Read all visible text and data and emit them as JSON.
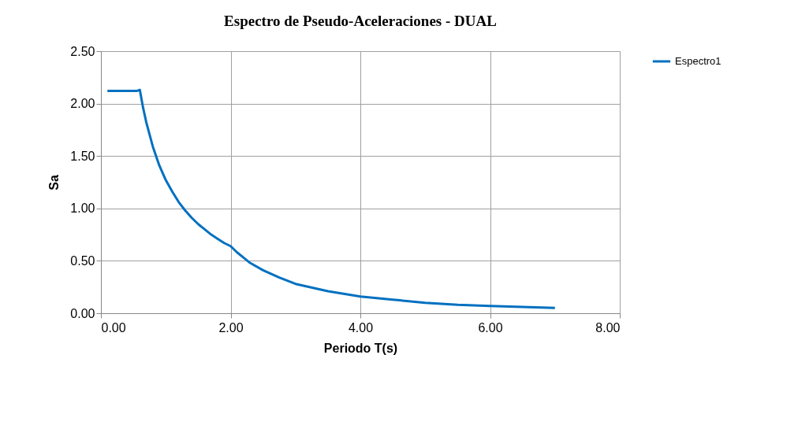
{
  "chart_data": {
    "type": "line",
    "title": "Espectro de Pseudo-Aceleraciones - DUAL",
    "xlabel": "Periodo T(s)",
    "ylabel": "Sa",
    "x": [
      0.1,
      0.2,
      0.3,
      0.4,
      0.5,
      0.55,
      0.6,
      0.65,
      0.7,
      0.8,
      0.9,
      1.0,
      1.1,
      1.2,
      1.3,
      1.4,
      1.5,
      1.6,
      1.7,
      1.8,
      1.9,
      2.0,
      2.1,
      2.2,
      2.3,
      2.5,
      2.75,
      3.0,
      3.5,
      4.0,
      4.5,
      5.0,
      5.5,
      6.0,
      6.5,
      7.0
    ],
    "series": [
      {
        "name": "Espectro1",
        "color": "#0070c0",
        "values": [
          2.12,
          2.12,
          2.12,
          2.12,
          2.12,
          2.12,
          2.13,
          1.96,
          1.82,
          1.59,
          1.41,
          1.27,
          1.16,
          1.06,
          0.98,
          0.91,
          0.85,
          0.8,
          0.75,
          0.71,
          0.67,
          0.64,
          0.58,
          0.53,
          0.48,
          0.41,
          0.34,
          0.28,
          0.21,
          0.16,
          0.13,
          0.1,
          0.08,
          0.07,
          0.06,
          0.05
        ]
      }
    ],
    "xlim": [
      0,
      8
    ],
    "xticks": [
      {
        "value": 0,
        "label": "0.00"
      },
      {
        "value": 2,
        "label": "2.00"
      },
      {
        "value": 4,
        "label": "4.00"
      },
      {
        "value": 6,
        "label": "6.00"
      },
      {
        "value": 8,
        "label": "8.00"
      }
    ],
    "ylim": [
      0,
      2.5
    ],
    "yticks": [
      {
        "value": 0,
        "label": "0.00"
      },
      {
        "value": 0.5,
        "label": "0.50"
      },
      {
        "value": 1,
        "label": "1.00"
      },
      {
        "value": 1.5,
        "label": "1.50"
      },
      {
        "value": 2,
        "label": "2.00"
      },
      {
        "value": 2.5,
        "label": "2.50"
      }
    ],
    "grid": true,
    "legend": "right",
    "marker": "none",
    "line_style": "solid"
  }
}
